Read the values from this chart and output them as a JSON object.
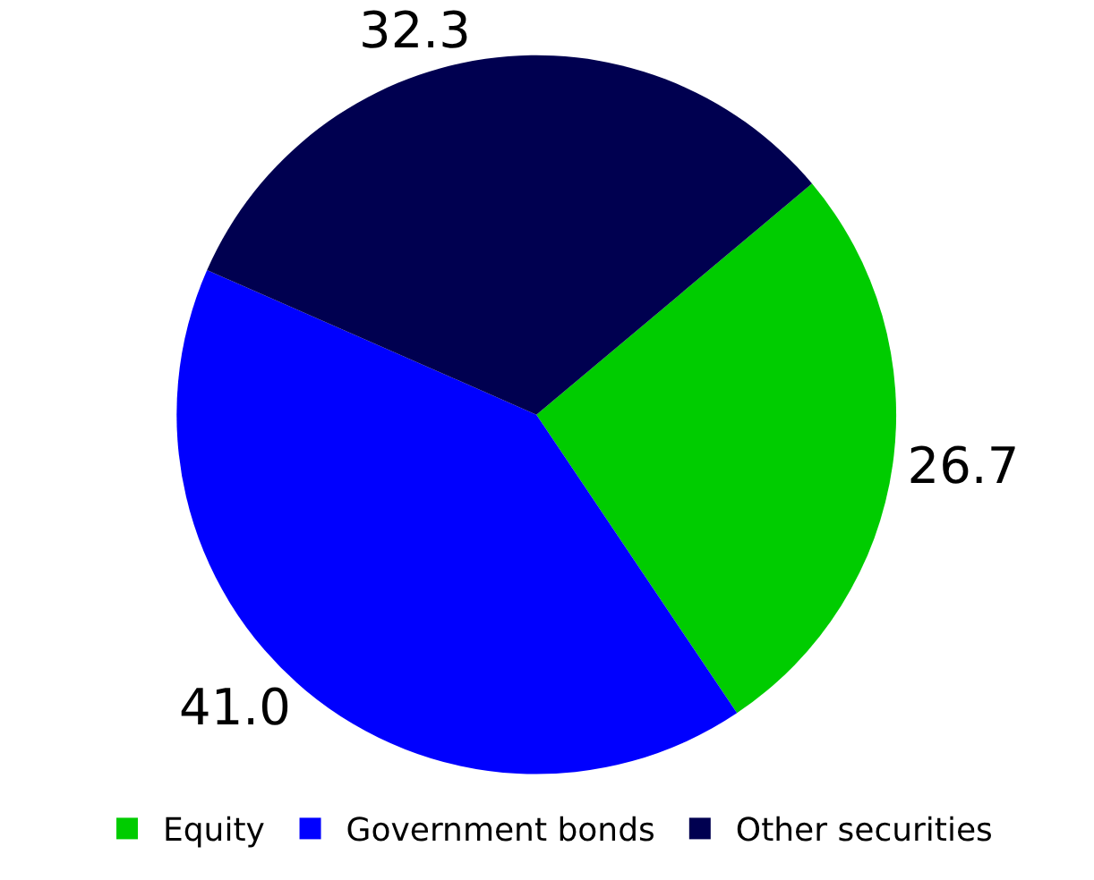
{
  "chart_data": {
    "type": "pie",
    "categories": [
      "Equity",
      "Government bonds",
      "Other securities"
    ],
    "values": [
      26.7,
      41.0,
      32.3
    ],
    "colors": [
      "#00cc00",
      "#0000ff",
      "#000050"
    ],
    "value_labels": [
      "26.7",
      "41.0",
      "32.3"
    ],
    "legend": "bottom"
  }
}
